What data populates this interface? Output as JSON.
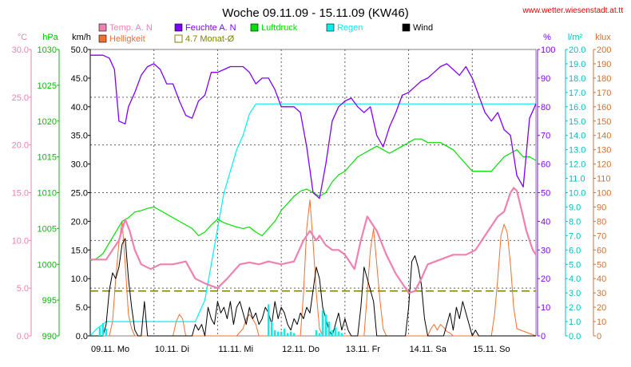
{
  "chart_data": {
    "type": "line",
    "title": "Woche 09.11.09 - 15.11.09 (KW46)",
    "website": "www.wetter.wiesenstadt.at.tt",
    "x_categories": [
      "09.11. Mo",
      "10.11. Di",
      "11.11. Mi",
      "12.11. Do",
      "13.11. Fr",
      "14.11. Sa",
      "15.11. So"
    ],
    "x_range_days": [
      0,
      7
    ],
    "grid": true,
    "legend": [
      {
        "key": "temp",
        "label": "Temp. A. N",
        "color": "#f080b0"
      },
      {
        "key": "feuchte",
        "label": "Feuchte A. N",
        "color": "#8000ff"
      },
      {
        "key": "luftdruck",
        "label": "Luftdruck",
        "color": "#00e000"
      },
      {
        "key": "regen",
        "label": "Regen",
        "color": "#00f0f0"
      },
      {
        "key": "wind",
        "label": "Wind",
        "color": "#000000"
      },
      {
        "key": "helligkeit",
        "label": "Helligkeit",
        "color": "#f07030"
      },
      {
        "key": "monat",
        "label": "4.7 Monat-Ø",
        "color": "#808000"
      }
    ],
    "axes": {
      "temp": {
        "unit": "°C",
        "color": "#f080b0",
        "min": 0,
        "max": 30,
        "step": 5,
        "decimals": 1
      },
      "hpa": {
        "unit": "hPa",
        "color": "#00c000",
        "min": 990,
        "max": 1030,
        "step": 5,
        "decimals": 0
      },
      "wind": {
        "unit": "km/h",
        "color": "#000000",
        "min": 0,
        "max": 50,
        "step": 5,
        "decimals": 1
      },
      "feuchte": {
        "unit": "%",
        "color": "#8000ff",
        "min": 0,
        "max": 100,
        "step": 10,
        "decimals": 0
      },
      "regen": {
        "unit": "l/m²",
        "color": "#00c0c0",
        "min": 0,
        "max": 20,
        "step": 1,
        "decimals": 1
      },
      "klux": {
        "unit": "klux",
        "color": "#d07030",
        "min": 0,
        "max": 200,
        "step": 10,
        "decimals": 0
      }
    },
    "monat_avg_temp": 4.7,
    "series": [
      {
        "key": "temp",
        "name": "Temp. A. N",
        "axis": "temp",
        "color": "#f080b0",
        "width": 2.2,
        "x": [
          0,
          0.25,
          0.45,
          0.55,
          0.62,
          0.7,
          0.8,
          0.95,
          1.1,
          1.3,
          1.5,
          1.65,
          1.8,
          2.0,
          2.15,
          2.35,
          2.5,
          2.65,
          2.8,
          3.0,
          3.2,
          3.35,
          3.45,
          3.55,
          3.6,
          3.7,
          3.8,
          3.9,
          4.0,
          4.15,
          4.25,
          4.35,
          4.5,
          4.65,
          4.8,
          4.9,
          5.0,
          5.1,
          5.2,
          5.3,
          5.5,
          5.7,
          5.9,
          6.05,
          6.2,
          6.3,
          6.4,
          6.5,
          6.6,
          6.65,
          6.7,
          6.78,
          6.85,
          6.95,
          7.0
        ],
        "y": [
          8.0,
          8.0,
          10.0,
          12.2,
          11.0,
          9.0,
          7.5,
          7.0,
          7.5,
          7.5,
          7.8,
          6.0,
          5.5,
          5.0,
          6.0,
          7.5,
          7.7,
          7.5,
          7.8,
          7.5,
          7.8,
          10.0,
          11.0,
          10.0,
          10.5,
          9.5,
          9.0,
          9.0,
          8.5,
          7.0,
          10.0,
          12.5,
          11.0,
          8.5,
          6.5,
          5.5,
          4.5,
          4.7,
          6.0,
          7.5,
          8.0,
          8.5,
          8.5,
          9.0,
          10.5,
          11.5,
          12.5,
          13.0,
          15.0,
          15.5,
          15.2,
          13.0,
          11.0,
          9.0,
          8.5
        ]
      },
      {
        "key": "feuchte",
        "name": "Feuchte A. N",
        "axis": "feuchte",
        "color": "#8000ff",
        "width": 1.3,
        "x": [
          0,
          0.1,
          0.2,
          0.3,
          0.38,
          0.45,
          0.55,
          0.6,
          0.7,
          0.8,
          0.9,
          1.0,
          1.1,
          1.2,
          1.3,
          1.4,
          1.5,
          1.6,
          1.7,
          1.8,
          1.9,
          2.0,
          2.1,
          2.2,
          2.3,
          2.4,
          2.5,
          2.6,
          2.7,
          2.8,
          2.9,
          3.0,
          3.1,
          3.2,
          3.3,
          3.4,
          3.5,
          3.6,
          3.7,
          3.8,
          3.9,
          4.0,
          4.1,
          4.2,
          4.3,
          4.4,
          4.5,
          4.6,
          4.7,
          4.8,
          4.9,
          5.0,
          5.1,
          5.2,
          5.3,
          5.4,
          5.5,
          5.6,
          5.7,
          5.8,
          5.9,
          6.0,
          6.1,
          6.2,
          6.3,
          6.4,
          6.5,
          6.6,
          6.7,
          6.8,
          6.9,
          7.0
        ],
        "y": [
          98,
          98,
          98,
          97,
          93,
          75,
          74,
          80,
          85,
          91,
          94,
          95,
          93,
          88,
          88,
          82,
          77,
          76,
          82,
          84,
          92,
          92,
          93,
          94,
          94,
          94,
          92,
          88,
          90,
          90,
          86,
          80,
          80,
          80,
          78,
          66,
          50,
          48,
          60,
          75,
          80,
          82,
          83,
          80,
          78,
          80,
          70,
          66,
          73,
          78,
          84,
          85,
          87,
          89,
          90,
          92,
          94,
          95,
          93,
          91,
          94,
          90,
          84,
          78,
          75,
          78,
          72,
          70,
          56,
          52,
          76,
          81
        ]
      },
      {
        "key": "luftdruck",
        "name": "Luftdruck",
        "axis": "hpa",
        "color": "#00e000",
        "width": 1.2,
        "x": [
          0,
          0.1,
          0.2,
          0.3,
          0.4,
          0.5,
          0.6,
          0.7,
          0.8,
          0.9,
          1.0,
          1.1,
          1.2,
          1.3,
          1.4,
          1.5,
          1.6,
          1.7,
          1.8,
          1.9,
          2.0,
          2.1,
          2.2,
          2.3,
          2.4,
          2.5,
          2.6,
          2.7,
          2.8,
          2.9,
          3.0,
          3.1,
          3.2,
          3.3,
          3.4,
          3.5,
          3.6,
          3.7,
          3.8,
          3.9,
          4.0,
          4.1,
          4.2,
          4.3,
          4.4,
          4.5,
          4.6,
          4.7,
          4.8,
          4.9,
          5.0,
          5.1,
          5.2,
          5.3,
          5.4,
          5.5,
          5.6,
          5.7,
          5.8,
          5.9,
          6.0,
          6.1,
          6.2,
          6.3,
          6.4,
          6.5,
          6.6,
          6.7,
          6.8,
          6.9,
          7.0
        ],
        "y": [
          1000.5,
          1000.8,
          1001.5,
          1003.0,
          1004.5,
          1006.0,
          1006.5,
          1007.3,
          1007.5,
          1007.8,
          1008.0,
          1007.5,
          1007.0,
          1006.5,
          1006.0,
          1005.5,
          1005.0,
          1004.0,
          1004.5,
          1005.5,
          1006.3,
          1005.8,
          1005.5,
          1005.2,
          1005.0,
          1005.2,
          1004.5,
          1004.0,
          1005.0,
          1006.0,
          1007.5,
          1008.5,
          1009.5,
          1010.2,
          1010.5,
          1010.0,
          1009.5,
          1010.0,
          1011.5,
          1012.5,
          1013.0,
          1014.0,
          1015.0,
          1015.5,
          1016.0,
          1016.5,
          1016.0,
          1015.5,
          1016.0,
          1016.5,
          1017.0,
          1017.5,
          1017.5,
          1017.0,
          1017.0,
          1017.0,
          1016.5,
          1016.0,
          1015.0,
          1014.0,
          1013.0,
          1013.0,
          1013.0,
          1013.0,
          1014.0,
          1015.0,
          1015.5,
          1016.0,
          1015.0,
          1015.0,
          1014.5
        ]
      },
      {
        "key": "regen",
        "name": "Regen",
        "axis": "regen",
        "color": "#00f0f0",
        "width": 1.2,
        "x": [
          0,
          0.1,
          0.2,
          0.25,
          0.3,
          1.0,
          1.5,
          1.65,
          1.8,
          1.9,
          2.0,
          2.1,
          2.2,
          2.3,
          2.4,
          2.5,
          2.6,
          2.7,
          2.8,
          2.9,
          3.0,
          7.0
        ],
        "y": [
          0,
          0.5,
          0.8,
          1.0,
          1.0,
          1.0,
          1.0,
          1.0,
          2.5,
          5.0,
          7.5,
          10.0,
          11.5,
          13.0,
          14.0,
          15.5,
          16.2,
          16.2,
          16.2,
          16.2,
          16.2,
          16.2
        ]
      },
      {
        "key": "wind",
        "name": "Wind",
        "axis": "wind",
        "color": "#000000",
        "width": 1.0,
        "x": [
          0,
          0.05,
          0.1,
          0.15,
          0.2,
          0.25,
          0.3,
          0.35,
          0.4,
          0.45,
          0.5,
          0.55,
          0.6,
          0.65,
          0.7,
          0.75,
          0.8,
          0.85,
          0.9,
          0.95,
          1.0,
          1.05,
          1.1,
          1.15,
          1.2,
          1.25,
          1.3,
          1.35,
          1.4,
          1.45,
          1.5,
          1.55,
          1.6,
          1.65,
          1.7,
          1.75,
          1.8,
          1.85,
          1.9,
          1.95,
          2.0,
          2.05,
          2.1,
          2.15,
          2.2,
          2.25,
          2.3,
          2.35,
          2.4,
          2.45,
          2.5,
          2.55,
          2.6,
          2.65,
          2.7,
          2.75,
          2.8,
          2.85,
          2.9,
          2.95,
          3.0,
          3.05,
          3.1,
          3.15,
          3.2,
          3.25,
          3.3,
          3.35,
          3.4,
          3.45,
          3.5,
          3.55,
          3.6,
          3.65,
          3.7,
          3.75,
          3.8,
          3.85,
          3.9,
          3.95,
          4.0,
          4.05,
          4.1,
          4.15,
          4.2,
          4.25,
          4.3,
          4.35,
          4.4,
          4.45,
          4.5,
          4.55,
          4.6,
          4.65,
          4.7,
          4.75,
          4.8,
          4.85,
          4.9,
          4.95,
          5.0,
          5.05,
          5.1,
          5.15,
          5.2,
          5.25,
          5.3,
          5.35,
          5.4,
          5.45,
          5.5,
          5.55,
          5.6,
          5.65,
          5.7,
          5.75,
          5.8,
          5.85,
          5.9,
          5.95,
          6.0,
          6.05,
          6.1,
          6.15,
          6.2,
          6.25,
          6.3,
          6.35,
          6.4,
          6.45,
          6.5,
          6.55,
          6.6,
          6.65,
          6.7,
          6.75,
          6.8,
          6.85,
          6.9,
          6.95,
          7.0
        ],
        "y": [
          0,
          0,
          0,
          0,
          0,
          2,
          8,
          11,
          10,
          12,
          16,
          17,
          10,
          5,
          1,
          0,
          0,
          6,
          0,
          0,
          0,
          0,
          0,
          0,
          0,
          0,
          0,
          0,
          0,
          0,
          0,
          0,
          0,
          2,
          1,
          2,
          0,
          5,
          3,
          2,
          6,
          4,
          5,
          3,
          6,
          2,
          5,
          6,
          4,
          2,
          5,
          3,
          4,
          2,
          3,
          5,
          4,
          2,
          6,
          3,
          5,
          4,
          2,
          1,
          3,
          2,
          4,
          3,
          5,
          4,
          8,
          12,
          10,
          5,
          3,
          1,
          0,
          2,
          4,
          1,
          3,
          1,
          0,
          0,
          0,
          5,
          12,
          10,
          8,
          6,
          0,
          0,
          0,
          0,
          0,
          0,
          0,
          0,
          0,
          0,
          5,
          13,
          14,
          12,
          9,
          3,
          0,
          0,
          0,
          0,
          0,
          0,
          2,
          4,
          1,
          5,
          3,
          6,
          4,
          2,
          0,
          1,
          0,
          0,
          0,
          0,
          0,
          0,
          0,
          0,
          0,
          0,
          0,
          0,
          0,
          0,
          0,
          0,
          0,
          0,
          0
        ]
      },
      {
        "key": "helligkeit",
        "name": "Helligkeit",
        "axis": "klux",
        "color": "#f07030",
        "width": 1.0,
        "x": [
          0,
          0.3,
          0.35,
          0.4,
          0.45,
          0.5,
          0.55,
          0.6,
          0.65,
          0.7,
          1.3,
          1.35,
          1.4,
          1.45,
          1.5,
          2.3,
          2.4,
          2.45,
          2.5,
          2.55,
          2.6,
          2.65,
          3.3,
          3.35,
          3.4,
          3.45,
          3.5,
          3.55,
          3.6,
          3.65,
          3.7,
          4.3,
          4.35,
          4.4,
          4.45,
          4.5,
          4.55,
          4.6,
          4.65,
          4.7,
          5.3,
          5.35,
          5.4,
          5.45,
          5.5,
          5.55,
          5.6,
          5.65,
          5.7,
          6.3,
          6.35,
          6.4,
          6.45,
          6.5,
          6.55,
          6.6,
          6.65,
          6.7,
          7.0
        ],
        "y": [
          0,
          0,
          10,
          40,
          65,
          80,
          50,
          15,
          5,
          0,
          0,
          10,
          15,
          12,
          0,
          0,
          5,
          12,
          15,
          12,
          8,
          0,
          0,
          30,
          75,
          95,
          65,
          30,
          5,
          0,
          0,
          0,
          30,
          60,
          75,
          50,
          25,
          5,
          0,
          0,
          0,
          5,
          8,
          4,
          8,
          6,
          3,
          2,
          0,
          0,
          15,
          40,
          70,
          78,
          72,
          50,
          20,
          5,
          0
        ]
      },
      {
        "key": "regen_bars",
        "name": "Regen",
        "axis": "regen",
        "color": "#00f0f0",
        "width": 2.4,
        "x": [
          0.15,
          0.2,
          0.25,
          2.8,
          2.85,
          2.9,
          2.95,
          3.0,
          3.05,
          3.1,
          3.15,
          3.2,
          3.55,
          3.6,
          3.65,
          3.7,
          3.75,
          3.8,
          3.85,
          3.9,
          3.95
        ],
        "y": [
          0.6,
          0.9,
          0.5,
          2.2,
          1.0,
          0.4,
          0.3,
          0.3,
          0.5,
          0.2,
          0.3,
          0.2,
          0.4,
          0.2,
          1.8,
          1.5,
          1.0,
          0.4,
          0.6,
          0.3,
          0.2
        ]
      }
    ]
  }
}
